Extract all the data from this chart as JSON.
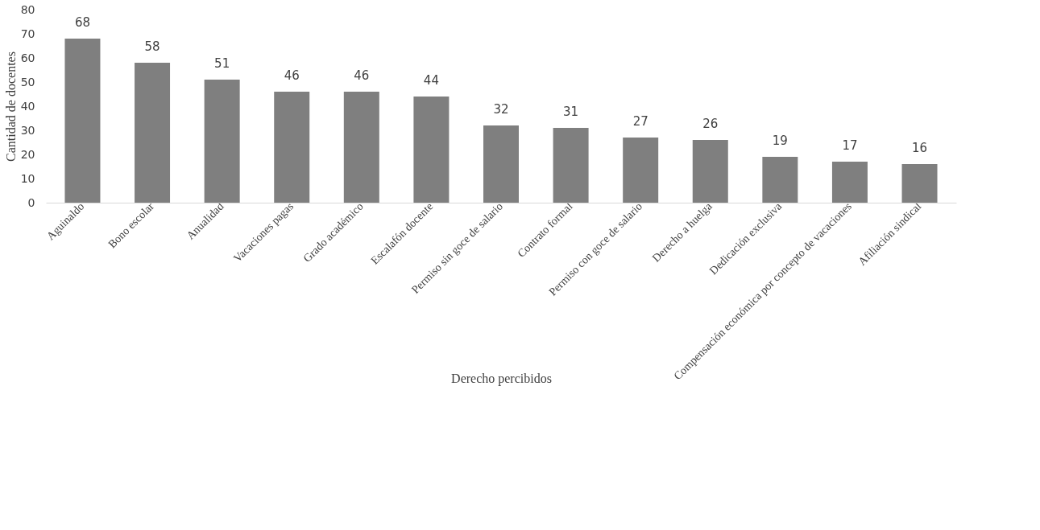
{
  "chart_data": {
    "type": "bar",
    "xlabel": "Derecho percibidos",
    "ylabel": "Cantidad de docentes",
    "categories": [
      "Aguinaldo",
      "Bono escolar",
      "Anualidad",
      "Vacaciones pagas",
      "Grado académico",
      "Escalafón docente",
      "Permiso sin goce de salario",
      "Contrato formal",
      "Permiso con goce de salario",
      "Derecho a huelga",
      "Dedicación exclusiva",
      "Compensación económica por concepto de vacaciones",
      "Afiliación sindical"
    ],
    "values": [
      68,
      58,
      51,
      46,
      46,
      44,
      32,
      31,
      27,
      26,
      19,
      17,
      16
    ],
    "color": "#7f7f7f",
    "ylim": [
      0,
      80
    ],
    "yticks": [
      0,
      10,
      20,
      30,
      40,
      50,
      60,
      70,
      80
    ],
    "data_labels": true,
    "grid": false
  }
}
